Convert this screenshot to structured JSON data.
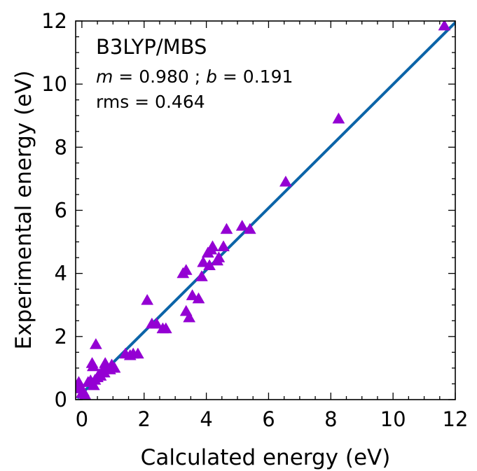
{
  "chart_data": {
    "type": "scatter",
    "xlabel": "Calculated energy (eV)",
    "ylabel": "Experimental energy (eV)",
    "xlim": [
      -0.2,
      12
    ],
    "ylim": [
      0,
      12
    ],
    "xticks": [
      "0",
      "2",
      "4",
      "6",
      "8",
      "10",
      "12"
    ],
    "yticks": [
      "0",
      "2",
      "4",
      "6",
      "8",
      "10",
      "12"
    ],
    "grid": false,
    "annotations": {
      "method": "B3LYP/MBS",
      "fit_m_symbol": "m",
      "fit_m_value": " = 0.980 ; ",
      "fit_b_symbol": "b",
      "fit_b_value": " = 0.191",
      "rms": "rms = 0.464"
    },
    "colors": {
      "points": "#9400D3",
      "fit_line": "#0B64A8"
    },
    "fit": {
      "slope": 0.98,
      "intercept": 0.191
    },
    "points": [
      {
        "x": -0.12,
        "y": 0.45
      },
      {
        "x": -0.1,
        "y": 0.55
      },
      {
        "x": -0.05,
        "y": 0.35
      },
      {
        "x": 0.0,
        "y": 0.2
      },
      {
        "x": 0.05,
        "y": 0.25
      },
      {
        "x": 0.1,
        "y": 0.15
      },
      {
        "x": 0.2,
        "y": 0.55
      },
      {
        "x": 0.28,
        "y": 0.6
      },
      {
        "x": 0.33,
        "y": 1.15
      },
      {
        "x": 0.36,
        "y": 1.05
      },
      {
        "x": 0.38,
        "y": 0.45
      },
      {
        "x": 0.42,
        "y": 0.62
      },
      {
        "x": 0.45,
        "y": 1.75
      },
      {
        "x": 0.5,
        "y": 0.7
      },
      {
        "x": 0.55,
        "y": 0.8
      },
      {
        "x": 0.6,
        "y": 0.75
      },
      {
        "x": 0.65,
        "y": 0.9
      },
      {
        "x": 0.72,
        "y": 0.85
      },
      {
        "x": 0.75,
        "y": 1.15
      },
      {
        "x": 0.82,
        "y": 1.0
      },
      {
        "x": 0.9,
        "y": 0.95
      },
      {
        "x": 0.96,
        "y": 1.1
      },
      {
        "x": 1.05,
        "y": 1.0
      },
      {
        "x": 1.4,
        "y": 1.45
      },
      {
        "x": 1.55,
        "y": 1.4
      },
      {
        "x": 1.65,
        "y": 1.45
      },
      {
        "x": 1.8,
        "y": 1.45
      },
      {
        "x": 2.1,
        "y": 3.15
      },
      {
        "x": 2.25,
        "y": 2.4
      },
      {
        "x": 2.4,
        "y": 2.4
      },
      {
        "x": 2.6,
        "y": 2.25
      },
      {
        "x": 2.7,
        "y": 2.25
      },
      {
        "x": 3.25,
        "y": 4.0
      },
      {
        "x": 3.35,
        "y": 4.1
      },
      {
        "x": 3.35,
        "y": 2.8
      },
      {
        "x": 3.45,
        "y": 2.6
      },
      {
        "x": 3.55,
        "y": 3.3
      },
      {
        "x": 3.75,
        "y": 3.2
      },
      {
        "x": 3.85,
        "y": 3.9
      },
      {
        "x": 3.9,
        "y": 4.35
      },
      {
        "x": 4.05,
        "y": 4.65
      },
      {
        "x": 4.1,
        "y": 4.25
      },
      {
        "x": 4.15,
        "y": 4.75
      },
      {
        "x": 4.2,
        "y": 4.85
      },
      {
        "x": 4.35,
        "y": 4.4
      },
      {
        "x": 4.4,
        "y": 4.5
      },
      {
        "x": 4.55,
        "y": 4.85
      },
      {
        "x": 4.65,
        "y": 5.4
      },
      {
        "x": 5.15,
        "y": 5.5
      },
      {
        "x": 5.4,
        "y": 5.4
      },
      {
        "x": 6.55,
        "y": 6.9
      },
      {
        "x": 8.25,
        "y": 8.9
      },
      {
        "x": 11.65,
        "y": 11.85
      }
    ]
  }
}
